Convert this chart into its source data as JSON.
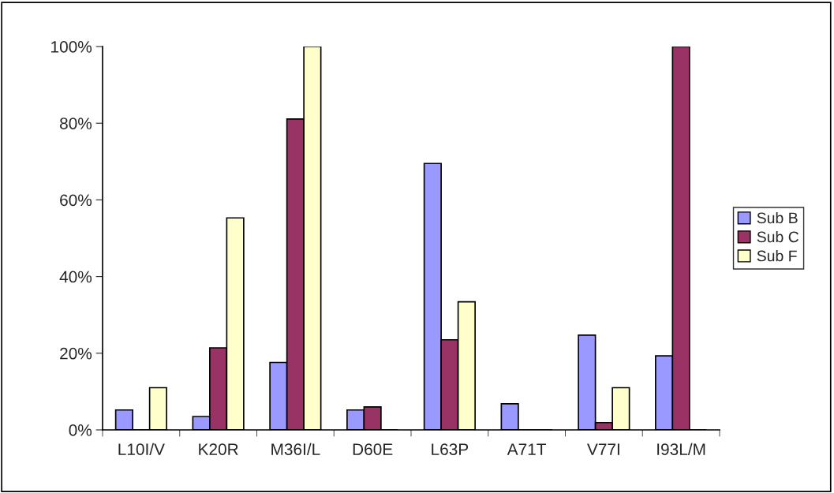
{
  "chart_data": {
    "type": "bar",
    "categories": [
      "L10I/V",
      "K20R",
      "M36I/L",
      "D60E",
      "L63P",
      "A71T",
      "V77I",
      "I93L/M"
    ],
    "series": [
      {
        "name": "Sub B",
        "color": "#9999ff",
        "values": [
          5.2,
          3.5,
          17.6,
          5.2,
          69.5,
          6.8,
          24.7,
          19.3
        ]
      },
      {
        "name": "Sub C",
        "color": "#993366",
        "values": [
          0,
          21.4,
          81.1,
          6.0,
          23.5,
          0,
          1.9,
          100
        ]
      },
      {
        "name": "Sub F",
        "color": "#ffffcc",
        "values": [
          11.0,
          55.3,
          100,
          0,
          33.4,
          0,
          11.0,
          0
        ]
      }
    ],
    "ylim": [
      0,
      100
    ],
    "yticks": [
      {
        "value": 0,
        "label": "0%"
      },
      {
        "value": 20,
        "label": "20%"
      },
      {
        "value": 40,
        "label": "40%"
      },
      {
        "value": 60,
        "label": "60%"
      },
      {
        "value": 80,
        "label": "80%"
      },
      {
        "value": 100,
        "label": "100%"
      }
    ],
    "grid": false,
    "legend": "right"
  }
}
